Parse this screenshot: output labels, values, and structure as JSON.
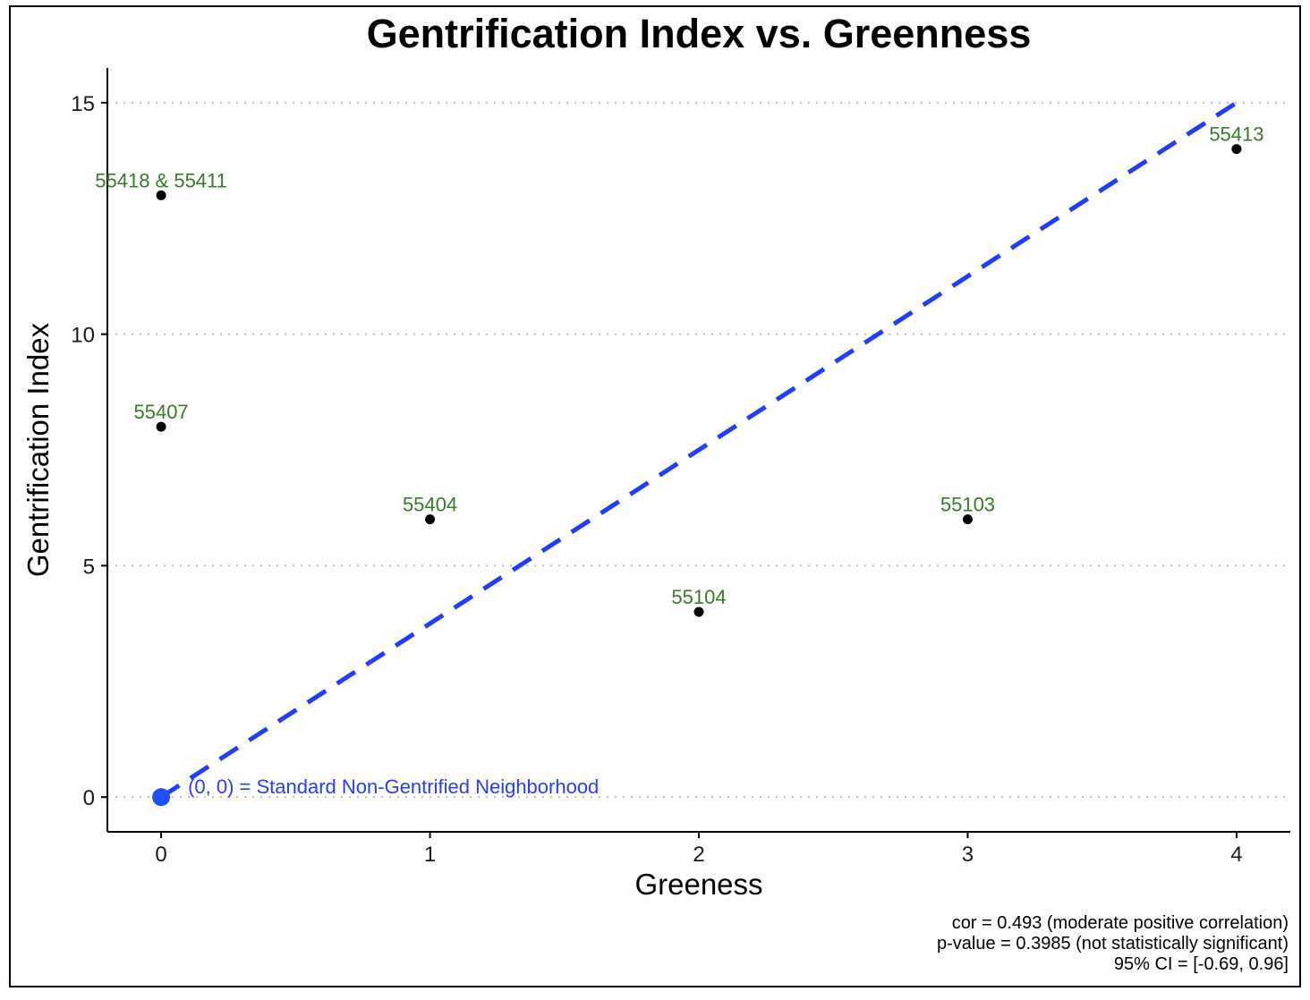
{
  "chart_data": {
    "type": "scatter",
    "title": "Gentrification Index vs. Greenness",
    "xlabel": "Greeness",
    "ylabel": "Gentrification Index",
    "xlim": [
      -0.2,
      4.2
    ],
    "ylim": [
      -0.75,
      15.75
    ],
    "x_ticks": [
      0,
      1,
      2,
      3,
      4
    ],
    "x_tick_labels": [
      "0",
      "1",
      "2",
      "3",
      "4"
    ],
    "y_ticks": [
      0,
      5,
      10,
      15
    ],
    "y_tick_labels": [
      "0",
      "5",
      "10",
      "15"
    ],
    "grid": "horizontal dotted",
    "points": [
      {
        "x": 0,
        "y": 13,
        "label": "55418 & 55411"
      },
      {
        "x": 0,
        "y": 8,
        "label": "55407"
      },
      {
        "x": 1,
        "y": 6,
        "label": "55404"
      },
      {
        "x": 2,
        "y": 4,
        "label": "55104"
      },
      {
        "x": 3,
        "y": 6,
        "label": "55103"
      },
      {
        "x": 4,
        "y": 14,
        "label": "55413"
      }
    ],
    "reference_line": {
      "style": "dashed",
      "from": [
        0,
        0
      ],
      "to": [
        4,
        15
      ]
    },
    "origin_marker": {
      "x": 0,
      "y": 0,
      "label": "(0, 0) = Standard Non-Gentrified Neighborhood"
    },
    "caption_lines": [
      "cor = 0.493 (moderate positive correlation)",
      "p-value = 0.3985 (not statistically significant)",
      "95% CI = [-0.69, 0.96]"
    ]
  },
  "colors": {
    "point": "#000000",
    "point_label": "#3a7a2a",
    "reference_line": "#1f3cff",
    "origin_marker": "#1f4fff",
    "origin_label": "#2a3cff",
    "grid": "#bdbdbd",
    "axis": "#000000",
    "frame": "#000000"
  }
}
